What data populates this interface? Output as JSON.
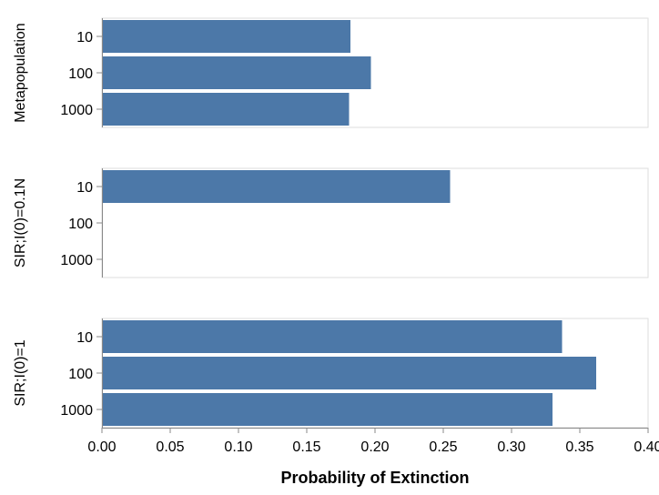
{
  "chart_data": {
    "type": "bar",
    "orientation": "horizontal",
    "xlabel": "Probability of Extinction",
    "xlim": [
      0,
      0.4
    ],
    "x_ticks": [
      "0.00",
      "0.05",
      "0.10",
      "0.15",
      "0.20",
      "0.25",
      "0.30",
      "0.35",
      "0.40"
    ],
    "categories": [
      "10",
      "100",
      "1000"
    ],
    "bar_color": "#4c78a8",
    "grid": false,
    "facets": [
      {
        "label": "Metapopulation",
        "values": [
          0.182,
          0.197,
          0.181
        ]
      },
      {
        "label": "SIR;I(0)=0.1N",
        "values": [
          0.255,
          0.0,
          0.0
        ]
      },
      {
        "label": "SIR;I(0)=1",
        "values": [
          0.337,
          0.362,
          0.33
        ]
      }
    ]
  }
}
